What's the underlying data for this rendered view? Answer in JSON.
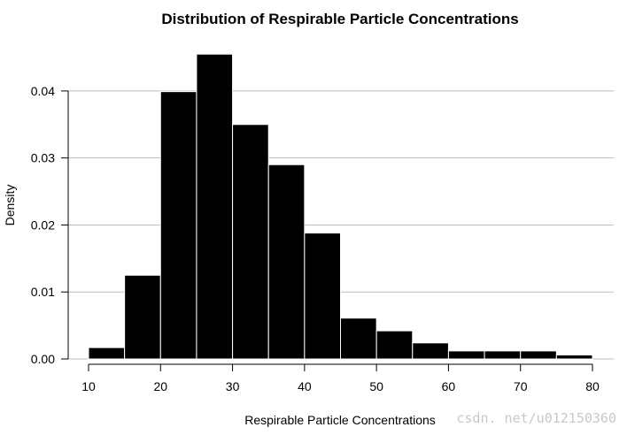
{
  "chart_data": {
    "type": "histogram",
    "title": "Distribution of Respirable Particle Concentrations",
    "xlabel": "Respirable Particle Concentrations",
    "ylabel": "Density",
    "bin_width": 5,
    "bins": [
      {
        "x0": 10,
        "x1": 15,
        "density": 0.0017
      },
      {
        "x0": 15,
        "x1": 20,
        "density": 0.0125
      },
      {
        "x0": 20,
        "x1": 25,
        "density": 0.0399
      },
      {
        "x0": 25,
        "x1": 30,
        "density": 0.0455
      },
      {
        "x0": 30,
        "x1": 35,
        "density": 0.035
      },
      {
        "x0": 35,
        "x1": 40,
        "density": 0.029
      },
      {
        "x0": 40,
        "x1": 45,
        "density": 0.0188
      },
      {
        "x0": 45,
        "x1": 50,
        "density": 0.0061
      },
      {
        "x0": 50,
        "x1": 55,
        "density": 0.0042
      },
      {
        "x0": 55,
        "x1": 60,
        "density": 0.0024
      },
      {
        "x0": 60,
        "x1": 65,
        "density": 0.0012
      },
      {
        "x0": 65,
        "x1": 70,
        "density": 0.0012
      },
      {
        "x0": 70,
        "x1": 75,
        "density": 0.0012
      },
      {
        "x0": 75,
        "x1": 80,
        "density": 0.0006
      }
    ],
    "xlim": [
      10,
      80
    ],
    "ylim": [
      0,
      0.045
    ],
    "x_ticks": [
      "10",
      "20",
      "30",
      "40",
      "50",
      "60",
      "70",
      "80"
    ],
    "y_ticks": [
      "0.00",
      "0.01",
      "0.02",
      "0.03",
      "0.04"
    ],
    "grid": "horizontal",
    "bar_color": "#000000",
    "bar_edge_color": "#ffffff",
    "grid_color": "#bebebe"
  },
  "watermark": "csdn. net/u012150360"
}
